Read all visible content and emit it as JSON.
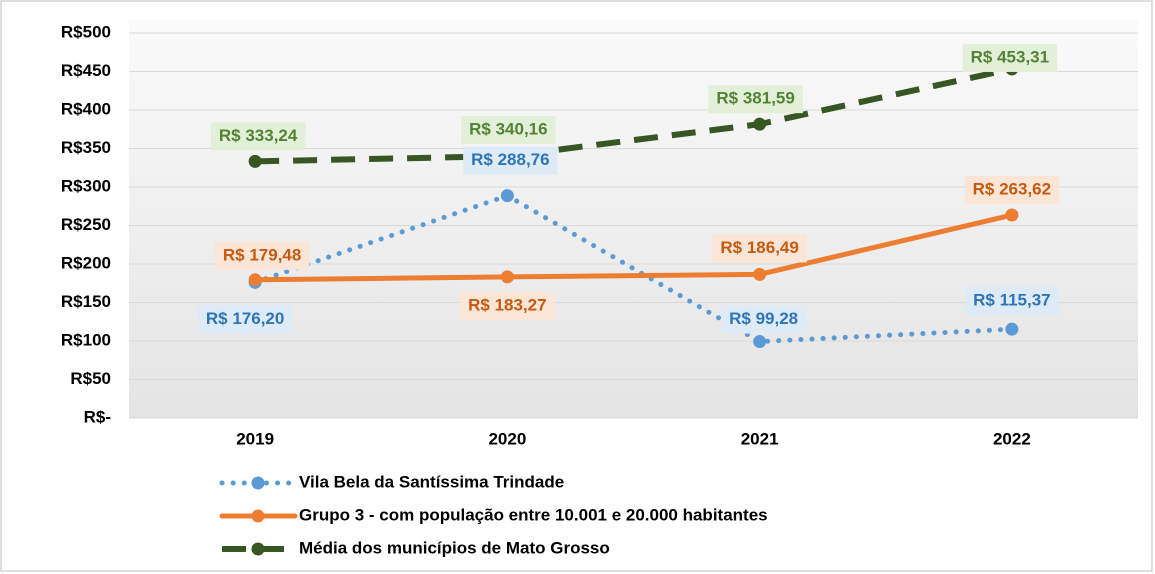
{
  "chart_data": {
    "type": "line",
    "categories": [
      "2019",
      "2020",
      "2021",
      "2022"
    ],
    "series": [
      {
        "name": "Vila Bela da Santíssima Trindade",
        "color": "#5b9bd5",
        "style": "dotted",
        "values": [
          176.2,
          288.76,
          99.28,
          115.37
        ],
        "value_labels": [
          "R$ 176,20",
          "R$ 288,76",
          "R$ 99,28",
          "R$ 115,37"
        ]
      },
      {
        "name": "Grupo 3 - com população entre 10.001 e 20.000 habitantes",
        "color": "#ed7d31",
        "style": "solid",
        "values": [
          179.48,
          183.27,
          186.49,
          263.62
        ],
        "value_labels": [
          "R$ 179,48",
          "R$ 183,27",
          "R$ 186,49",
          "R$ 263,62"
        ]
      },
      {
        "name": "Média dos municípios de Mato Grosso",
        "color": "#375623",
        "style": "dashed",
        "values": [
          333.24,
          340.16,
          381.59,
          453.31
        ],
        "value_labels": [
          "R$ 333,24",
          "R$ 340,16",
          "R$ 381,59",
          "R$ 453,31"
        ]
      }
    ],
    "ylim": [
      0,
      500
    ],
    "yticks": [
      {
        "value": 0,
        "label": "R$-"
      },
      {
        "value": 50,
        "label": "R$50"
      },
      {
        "value": 100,
        "label": "R$100"
      },
      {
        "value": 150,
        "label": "R$150"
      },
      {
        "value": 200,
        "label": "R$200"
      },
      {
        "value": 250,
        "label": "R$250"
      },
      {
        "value": 300,
        "label": "R$300"
      },
      {
        "value": 350,
        "label": "R$350"
      },
      {
        "value": 400,
        "label": "R$400"
      },
      {
        "value": 450,
        "label": "R$450"
      },
      {
        "value": 500,
        "label": "R$500"
      }
    ],
    "grid": true,
    "legend": "bottom"
  }
}
